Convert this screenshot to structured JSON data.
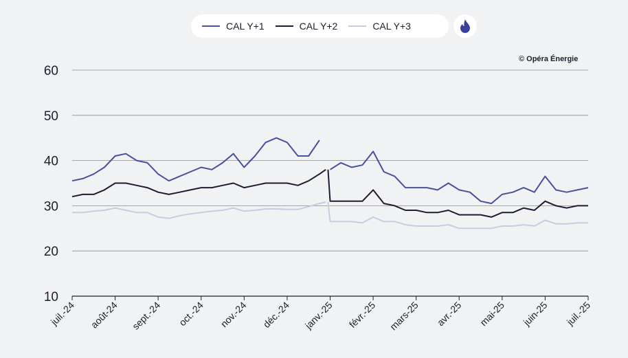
{
  "legend": {
    "items": [
      {
        "label": "CAL Y+1",
        "color": "#4a4f9e"
      },
      {
        "label": "CAL Y+2",
        "color": "#1e1b33"
      },
      {
        "label": "CAL Y+3",
        "color": "#c9cbe2"
      }
    ],
    "energy_icon": "flame-icon",
    "energy_icon_color": "#3d3f9a"
  },
  "copyright": "© Opéra Énergie",
  "chart_data": {
    "type": "line",
    "title": "",
    "xlabel": "",
    "ylabel": "",
    "ylim": [
      10,
      60
    ],
    "yticks": [
      10,
      20,
      30,
      40,
      50,
      60
    ],
    "grid": "horizontal",
    "legend_position": "top",
    "x_tick_labels": [
      "juil.-24",
      "août-24",
      "sept.-24",
      "oct.-24",
      "nov.-24",
      "déc.-24",
      "janv.-25",
      "févr.-25",
      "mars-25",
      "avr.-25",
      "mai-25",
      "juin-25",
      "juil.-25"
    ],
    "series": [
      {
        "name": "CAL Y+1",
        "color": "#4a4f9e",
        "segments": [
          [
            [
              0,
              35.5
            ],
            [
              0.25,
              36
            ],
            [
              0.5,
              37
            ],
            [
              0.75,
              38.5
            ],
            [
              1,
              41
            ],
            [
              1.25,
              41.5
            ],
            [
              1.5,
              40
            ],
            [
              1.75,
              39.5
            ],
            [
              2,
              37
            ],
            [
              2.25,
              35.5
            ],
            [
              2.5,
              36.5
            ],
            [
              2.75,
              37.5
            ],
            [
              3,
              38.5
            ],
            [
              3.25,
              38
            ],
            [
              3.5,
              39.5
            ],
            [
              3.75,
              41.5
            ],
            [
              4,
              38.5
            ],
            [
              4.25,
              41
            ],
            [
              4.5,
              44
            ],
            [
              4.75,
              45
            ],
            [
              5,
              44
            ],
            [
              5.25,
              41
            ],
            [
              5.5,
              41
            ],
            [
              5.75,
              44.5
            ]
          ],
          [
            [
              6,
              38
            ],
            [
              6.25,
              39.5
            ],
            [
              6.5,
              38.5
            ],
            [
              6.75,
              39
            ],
            [
              7,
              42
            ],
            [
              7.25,
              37.5
            ],
            [
              7.5,
              36.5
            ],
            [
              7.75,
              34
            ],
            [
              8,
              34
            ],
            [
              8.25,
              34
            ],
            [
              8.5,
              33.5
            ],
            [
              8.75,
              35
            ],
            [
              9,
              33.5
            ],
            [
              9.25,
              33
            ],
            [
              9.5,
              31
            ],
            [
              9.75,
              30.5
            ],
            [
              10,
              32.5
            ],
            [
              10.25,
              33
            ],
            [
              10.5,
              34
            ],
            [
              10.75,
              33
            ],
            [
              11,
              36.5
            ],
            [
              11.25,
              33.5
            ],
            [
              11.5,
              33
            ],
            [
              11.75,
              33.5
            ],
            [
              12,
              34
            ]
          ]
        ]
      },
      {
        "name": "CAL Y+2",
        "color": "#1e1b33",
        "segments": [
          [
            [
              0,
              32
            ],
            [
              0.25,
              32.5
            ],
            [
              0.5,
              32.5
            ],
            [
              0.75,
              33.5
            ],
            [
              1,
              35
            ],
            [
              1.25,
              35
            ],
            [
              1.5,
              34.5
            ],
            [
              1.75,
              34
            ],
            [
              2,
              33
            ],
            [
              2.25,
              32.5
            ],
            [
              2.5,
              33
            ],
            [
              2.75,
              33.5
            ],
            [
              3,
              34
            ],
            [
              3.25,
              34
            ],
            [
              3.5,
              34.5
            ],
            [
              3.75,
              35
            ],
            [
              4,
              34
            ],
            [
              4.25,
              34.5
            ],
            [
              4.5,
              35
            ],
            [
              4.75,
              35
            ],
            [
              5,
              35
            ],
            [
              5.25,
              34.5
            ],
            [
              5.5,
              35.5
            ],
            [
              5.75,
              37
            ],
            [
              5.9,
              38
            ]
          ],
          [
            [
              5.95,
              38
            ],
            [
              6,
              31
            ],
            [
              6.25,
              31
            ],
            [
              6.5,
              31
            ],
            [
              6.75,
              31
            ],
            [
              7,
              33.5
            ],
            [
              7.25,
              30.5
            ],
            [
              7.5,
              30
            ],
            [
              7.75,
              29
            ],
            [
              8,
              29
            ],
            [
              8.25,
              28.5
            ],
            [
              8.5,
              28.5
            ],
            [
              8.75,
              29
            ],
            [
              9,
              28
            ],
            [
              9.25,
              28
            ],
            [
              9.5,
              28
            ],
            [
              9.75,
              27.5
            ],
            [
              10,
              28.5
            ],
            [
              10.25,
              28.5
            ],
            [
              10.5,
              29.5
            ],
            [
              10.75,
              29
            ],
            [
              11,
              31
            ],
            [
              11.25,
              30
            ],
            [
              11.5,
              29.5
            ],
            [
              11.75,
              30
            ],
            [
              12,
              30
            ]
          ]
        ]
      },
      {
        "name": "CAL Y+3",
        "color": "#c9cbe2",
        "segments": [
          [
            [
              0,
              28.5
            ],
            [
              0.25,
              28.5
            ],
            [
              0.5,
              28.8
            ],
            [
              0.75,
              29
            ],
            [
              1,
              29.5
            ],
            [
              1.25,
              29
            ],
            [
              1.5,
              28.5
            ],
            [
              1.75,
              28.5
            ],
            [
              2,
              27.5
            ],
            [
              2.25,
              27.2
            ],
            [
              2.5,
              27.8
            ],
            [
              2.75,
              28.2
            ],
            [
              3,
              28.5
            ],
            [
              3.25,
              28.8
            ],
            [
              3.5,
              29
            ],
            [
              3.75,
              29.5
            ],
            [
              4,
              28.8
            ],
            [
              4.25,
              29
            ],
            [
              4.5,
              29.3
            ],
            [
              4.75,
              29.3
            ],
            [
              5,
              29.2
            ],
            [
              5.25,
              29.2
            ],
            [
              5.5,
              29.8
            ],
            [
              5.75,
              30.5
            ],
            [
              5.9,
              30.8
            ]
          ],
          [
            [
              5.95,
              30.8
            ],
            [
              6,
              26.5
            ],
            [
              6.25,
              26.5
            ],
            [
              6.5,
              26.5
            ],
            [
              6.75,
              26.2
            ],
            [
              7,
              27.5
            ],
            [
              7.25,
              26.5
            ],
            [
              7.5,
              26.5
            ],
            [
              7.75,
              25.8
            ],
            [
              8,
              25.5
            ],
            [
              8.25,
              25.5
            ],
            [
              8.5,
              25.5
            ],
            [
              8.75,
              25.8
            ],
            [
              9,
              25
            ],
            [
              9.25,
              25
            ],
            [
              9.5,
              25
            ],
            [
              9.75,
              25
            ],
            [
              10,
              25.5
            ],
            [
              10.25,
              25.5
            ],
            [
              10.5,
              25.8
            ],
            [
              10.75,
              25.5
            ],
            [
              11,
              26.8
            ],
            [
              11.25,
              26
            ],
            [
              11.5,
              26
            ],
            [
              11.75,
              26.2
            ],
            [
              12,
              26.2
            ]
          ]
        ]
      }
    ]
  }
}
